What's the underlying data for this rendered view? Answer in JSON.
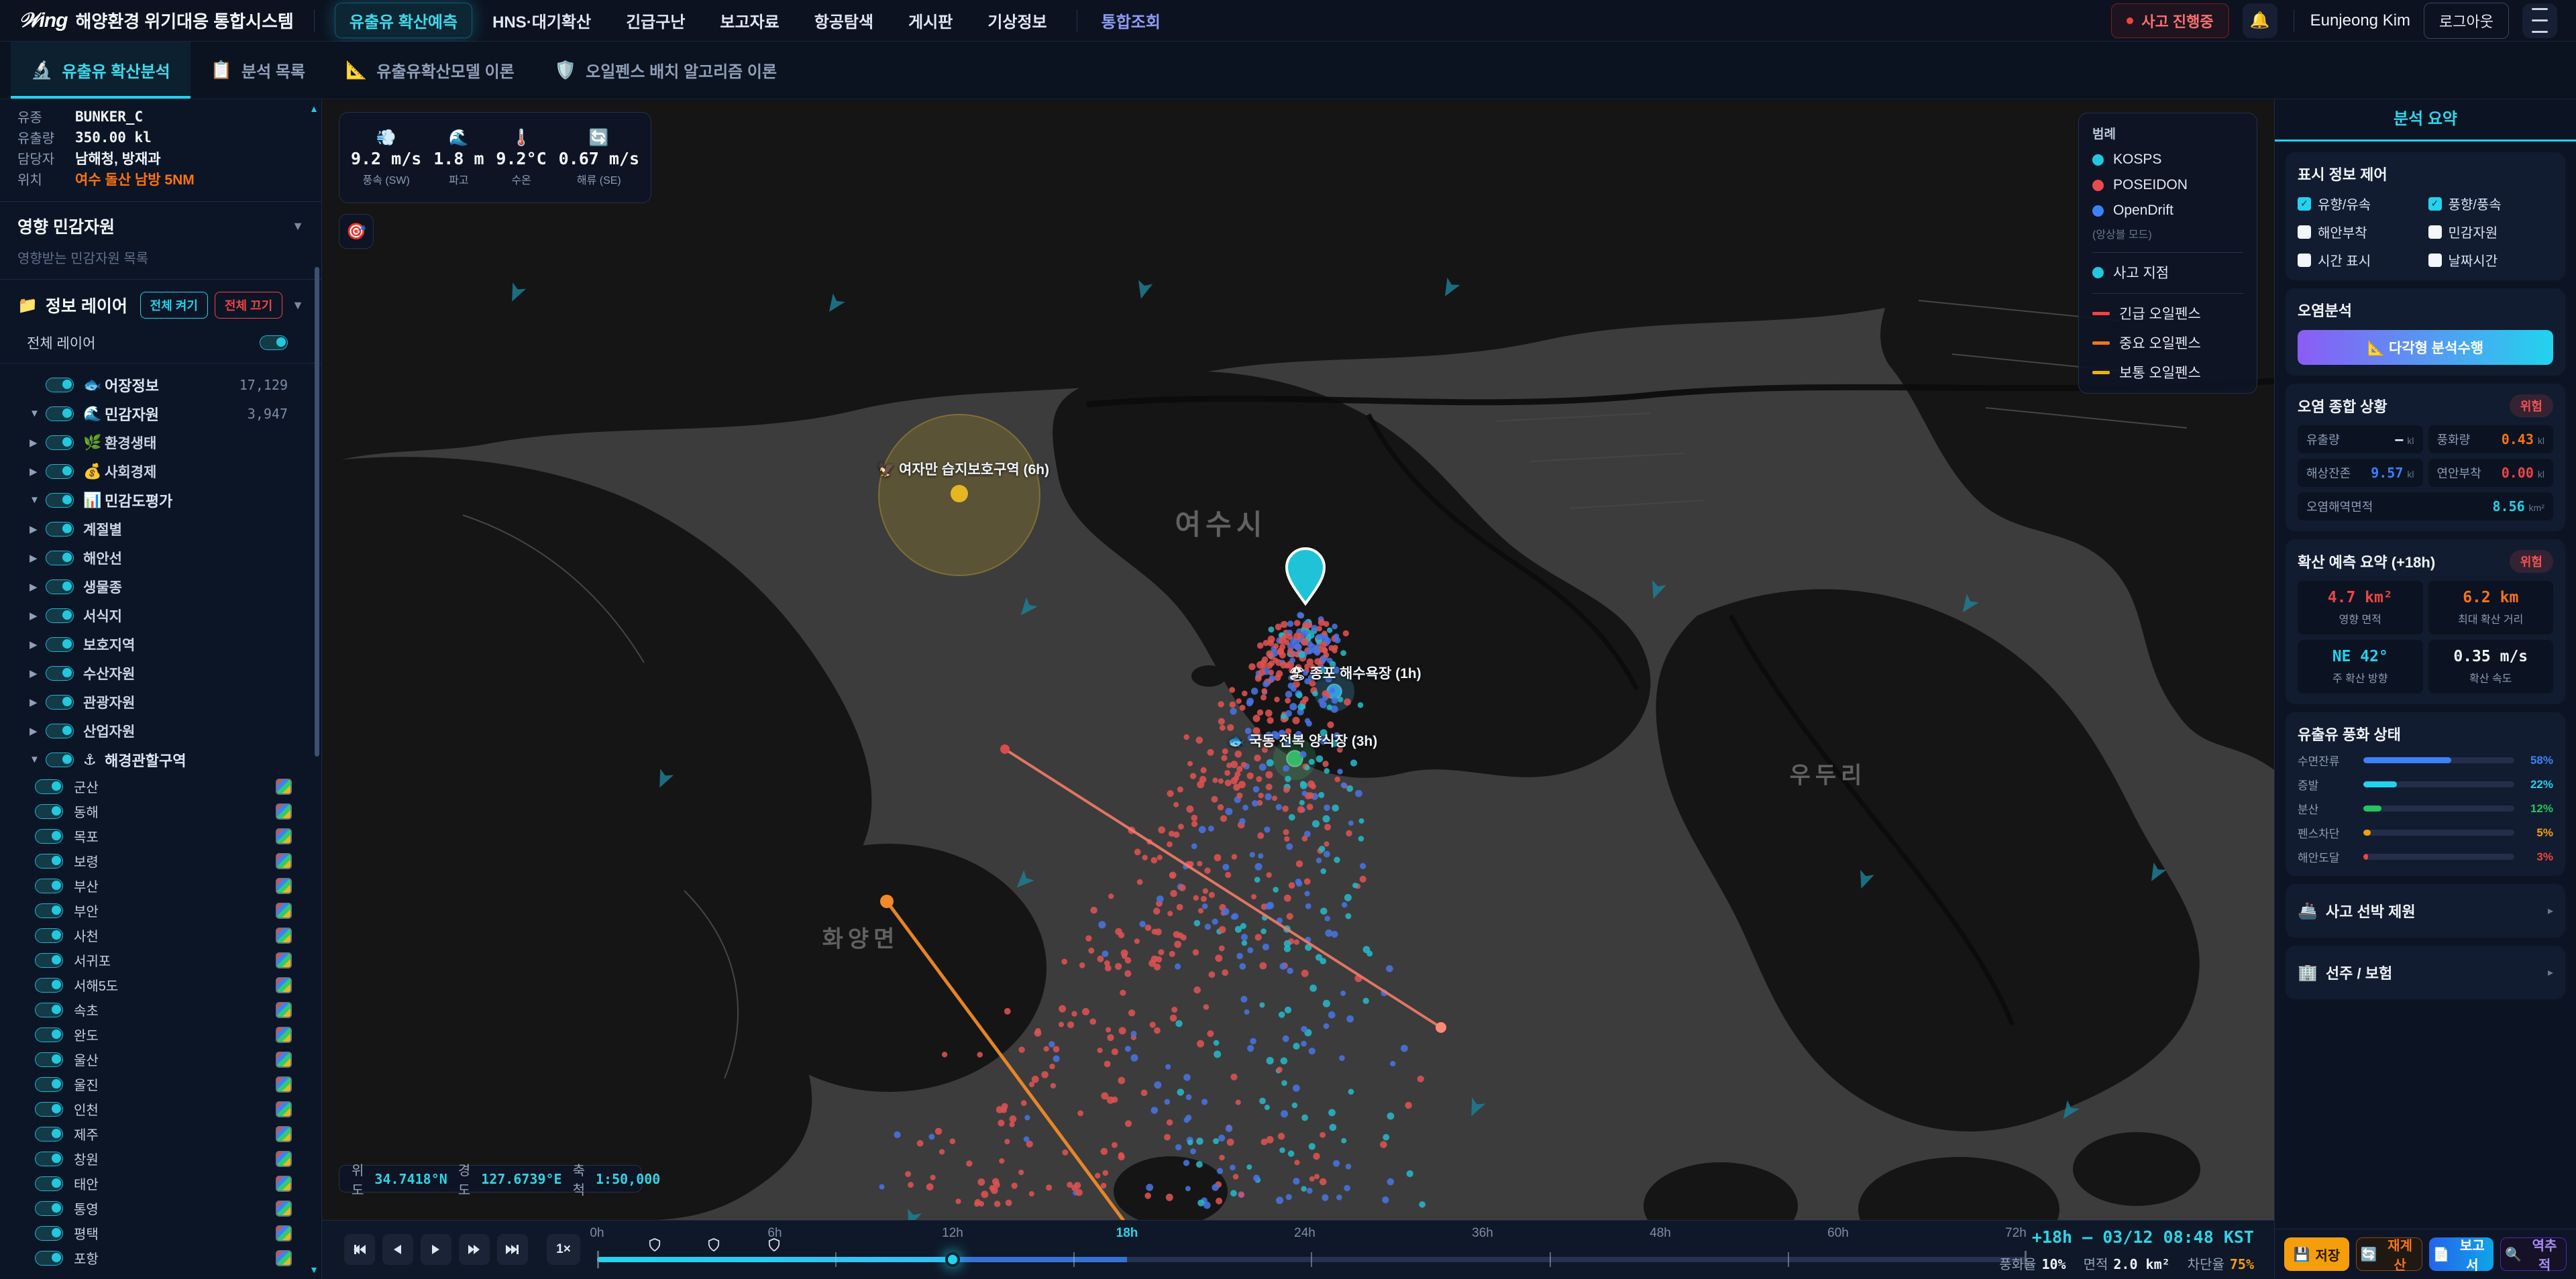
{
  "header": {
    "logo_mark": "𝒲ing",
    "title": "해양환경 위기대응 통합시스템",
    "nav": [
      {
        "label": "유출유 확산예측",
        "style": "active"
      },
      {
        "label": "HNS·대기확산"
      },
      {
        "label": "긴급구난"
      },
      {
        "label": "보고자료"
      },
      {
        "label": "항공탐색"
      },
      {
        "label": "게시판"
      },
      {
        "label": "기상정보"
      },
      {
        "label": "통합조회",
        "style": "accent"
      }
    ],
    "incident_badge": "사고 진행중",
    "bell_icon": "🔔",
    "user": "Eunjeong Kim",
    "logout": "로그아웃"
  },
  "tabs": [
    {
      "icon": "🔬",
      "label": "유출유 확산분석",
      "active": true
    },
    {
      "icon": "📋",
      "label": "분석 목록"
    },
    {
      "icon": "📐",
      "label": "유출유확산모델 이론"
    },
    {
      "icon": "🛡️",
      "label": "오일펜스 배치 알고리즘 이론"
    }
  ],
  "sidebar": {
    "info": [
      {
        "label": "유종",
        "value": "BUNKER_C",
        "mono": true
      },
      {
        "label": "유출량",
        "value": "350.00 kl",
        "mono": true
      },
      {
        "label": "담당자",
        "value": "남해청, 방재과"
      },
      {
        "label": "위치",
        "value": "여수 돌산 남방 5NM",
        "accent": true
      }
    ],
    "affected": {
      "title": "영향 민감자원",
      "empty": "영향받는 민감자원 목록"
    },
    "layers": {
      "icon": "📁",
      "title": "정보 레이어",
      "on": "전체 켜기",
      "off": "전체 끄기",
      "master": "전체 레이어",
      "tree": [
        {
          "icon": "🐟",
          "label": "어장정보",
          "count": "17,129"
        },
        {
          "caret": "▼",
          "icon": "🌊",
          "label": "민감자원",
          "count": "3,947"
        },
        {
          "caret": "▶",
          "icon": "🌿",
          "label": "환경생태",
          "child": true
        },
        {
          "caret": "▶",
          "icon": "💰",
          "label": "사회경제",
          "child": true
        },
        {
          "caret": "▼",
          "icon": "📊",
          "label": "민감도평가"
        },
        {
          "caret": "▶",
          "label": "계절별",
          "child": true
        },
        {
          "caret": "▶",
          "label": "해안선",
          "child": true
        },
        {
          "caret": "▶",
          "label": "생물종",
          "child": true
        },
        {
          "caret": "▶",
          "label": "서식지",
          "child": true
        },
        {
          "caret": "▶",
          "label": "보호지역",
          "child": true
        },
        {
          "caret": "▶",
          "label": "수산자원",
          "child": true
        },
        {
          "caret": "▶",
          "label": "관광자원",
          "child": true
        },
        {
          "caret": "▶",
          "label": "산업자원",
          "child": true
        },
        {
          "caret": "▼",
          "icon": "⚓",
          "label": "해경관할구역"
        }
      ],
      "regions": [
        "군산",
        "동해",
        "목포",
        "보령",
        "부산",
        "부안",
        "사천",
        "서귀포",
        "서해5도",
        "속초",
        "완도",
        "울산",
        "울진",
        "인천",
        "제주",
        "창원",
        "태안",
        "통영",
        "평택",
        "포항"
      ]
    }
  },
  "map": {
    "weather": [
      {
        "icon": "💨",
        "value": "9.2 m/s",
        "label": "풍속 (SW)"
      },
      {
        "icon": "🌊",
        "value": "1.8 m",
        "label": "파고"
      },
      {
        "icon": "🌡️",
        "value": "9.2°C",
        "label": "수온"
      },
      {
        "icon": "🔄",
        "value": "0.67 m/s",
        "label": "해류 (SE)"
      }
    ],
    "target_icon": "🎯",
    "legend": {
      "title": "범례",
      "models": [
        {
          "name": "KOSPS",
          "color": "#22c8dd"
        },
        {
          "name": "POSEIDON",
          "color": "#ea4a4e"
        },
        {
          "name": "OpenDrift",
          "color": "#3b82f6"
        }
      ],
      "note": "(앙상블 모드)",
      "incident": {
        "name": "사고 지점",
        "color": "#22c8dd"
      },
      "fences": [
        {
          "name": "긴급 오일펜스",
          "color": "#ef4444"
        },
        {
          "name": "중요 오일펜스",
          "color": "#f97316"
        },
        {
          "name": "보통 오일펜스",
          "color": "#eab308"
        }
      ]
    },
    "place_labels": [
      "여수시",
      "화양면",
      "우두리"
    ],
    "markers": {
      "wetland": "🦅 여자만 습지보호구역 (6h)",
      "beach": "🏖 종포 해수욕장 (1h)",
      "farm": "🐟 국동 전복 양식장 (3h)"
    },
    "particle_colors": {
      "kosps": "#28b6c6",
      "poseidon": "#de5252",
      "opendrift": "#4873e0"
    },
    "coords": [
      {
        "label": "위도",
        "value": "34.7418°N"
      },
      {
        "label": "경도",
        "value": "127.6739°E"
      },
      {
        "label": "축척",
        "value": "1:50,000"
      }
    ]
  },
  "timeline": {
    "speed": "1×",
    "labels": [
      "0h",
      "6h",
      "12h",
      "18h",
      "24h",
      "36h",
      "48h",
      "60h",
      "72h"
    ],
    "current_index": 3,
    "time": "+18h — 03/12 08:48 KST",
    "stats": [
      {
        "label": "풍화율",
        "value": "10%",
        "color": "#f1f5fa"
      },
      {
        "label": "면적",
        "value": "2.0 km²",
        "color": "#f1f5fa"
      },
      {
        "label": "차단율",
        "value": "75%",
        "color": "#f59e0b"
      }
    ]
  },
  "summary": {
    "title": "분석 요약",
    "display": {
      "title": "표시 정보 제어",
      "items": [
        {
          "label": "유향/유속",
          "checked": true
        },
        {
          "label": "풍향/풍속",
          "checked": true
        },
        {
          "label": "해안부착",
          "checked": false
        },
        {
          "label": "민감자원",
          "checked": false
        },
        {
          "label": "시간 표시",
          "checked": false
        },
        {
          "label": "날짜시간",
          "checked": false
        }
      ]
    },
    "analysis": {
      "title": "오염분석",
      "button": "📐 다각형 분석수행"
    },
    "status": {
      "title": "오염 종합 상황",
      "badge": "위험",
      "items": [
        {
          "label": "유출량",
          "value": "—",
          "unit": "kl",
          "color": "#f1f5fa"
        },
        {
          "label": "풍화량",
          "value": "0.43",
          "unit": "kl",
          "color": "#f97316"
        },
        {
          "label": "해상잔존",
          "value": "9.57",
          "unit": "kl",
          "color": "#3b82f6"
        },
        {
          "label": "연안부착",
          "value": "0.00",
          "unit": "kl",
          "color": "#ef4444"
        },
        {
          "label": "오염해역면적",
          "value": "8.56",
          "unit": "km²",
          "color": "#22d3ee",
          "wide": true
        }
      ]
    },
    "forecast": {
      "title": "확산 예측 요약 (+18h)",
      "badge": "위험",
      "items": [
        {
          "value": "4.7 km²",
          "label": "영향 면적",
          "color": "#ef4444"
        },
        {
          "value": "6.2 km",
          "label": "최대 확산 거리",
          "color": "#f97316"
        },
        {
          "value": "NE 42°",
          "label": "주 확산 방향",
          "color": "#22d3ee"
        },
        {
          "value": "0.35 m/s",
          "label": "확산 속도",
          "color": "#f1f5fa"
        }
      ]
    },
    "weathering": {
      "title": "유출유 풍화 상태",
      "items": [
        {
          "label": "수면잔류",
          "pct": 58,
          "color": "#3b82f6"
        },
        {
          "label": "증발",
          "pct": 22,
          "color": "#22d3ee"
        },
        {
          "label": "분산",
          "pct": 12,
          "color": "#22c55e"
        },
        {
          "label": "펜스차단",
          "pct": 5,
          "color": "#f59e0b"
        },
        {
          "label": "해안도달",
          "pct": 3,
          "color": "#ef4444"
        }
      ]
    },
    "vessel": {
      "icon": "🚢",
      "title": "사고 선박 제원"
    },
    "insurance": {
      "icon": "🏢",
      "title": "선주 / 보험"
    },
    "actions": [
      {
        "icon": "💾",
        "label": "저장",
        "style": "save"
      },
      {
        "icon": "🔄",
        "label": "재계산",
        "style": "recalc"
      },
      {
        "icon": "📄",
        "label": "보고서",
        "style": "report"
      },
      {
        "icon": "🔍",
        "label": "역추적",
        "style": "trace"
      }
    ]
  }
}
